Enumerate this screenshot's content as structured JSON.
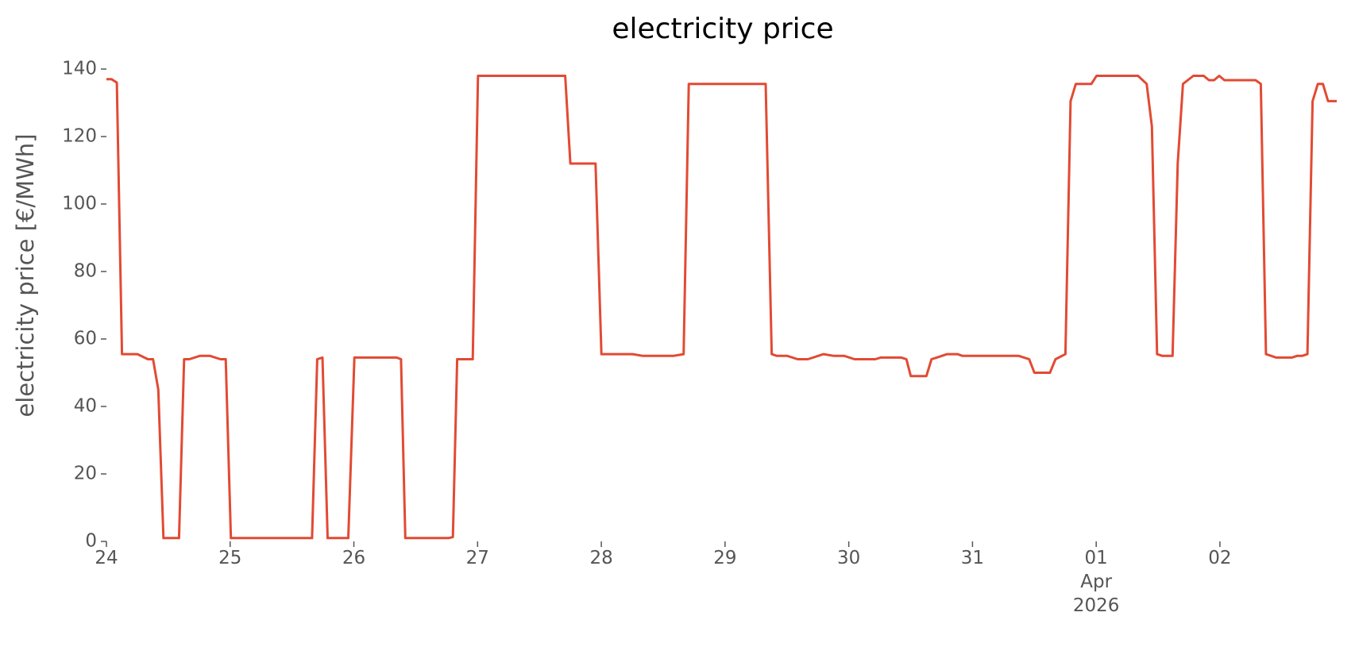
{
  "chart_data": {
    "type": "line",
    "title": "electricity price",
    "ylabel": "electricity price [€/MWh]",
    "x": [
      0,
      0.042,
      0.084,
      0.126,
      0.251,
      0.335,
      0.377,
      0.419,
      0.461,
      0.587,
      0.628,
      0.67,
      0.754,
      0.838,
      0.922,
      0.964,
      1.006,
      1.229,
      1.662,
      1.704,
      1.746,
      1.788,
      1.955,
      2.004,
      2.346,
      2.381,
      2.416,
      2.765,
      2.8,
      2.835,
      2.961,
      3.003,
      3.708,
      3.75,
      3.953,
      4.001,
      4.253,
      4.336,
      4.581,
      4.665,
      4.707,
      5.328,
      5.377,
      5.419,
      5.503,
      5.587,
      5.67,
      5.796,
      5.88,
      5.964,
      6.047,
      6.215,
      6.257,
      6.425,
      6.466,
      6.501,
      6.627,
      6.669,
      6.711,
      6.795,
      6.878,
      6.92,
      7.374,
      7.458,
      7.5,
      7.626,
      7.671,
      7.751,
      7.793,
      7.835,
      7.961,
      8.003,
      8.338,
      8.408,
      8.45,
      8.492,
      8.534,
      8.617,
      8.659,
      8.701,
      8.785,
      8.869,
      8.911,
      8.953,
      8.994,
      9.036,
      9.288,
      9.33,
      9.372,
      9.455,
      9.581,
      9.623,
      9.665,
      9.707,
      9.749,
      9.791,
      9.832,
      9.874,
      9.944
    ],
    "series": [
      {
        "color": "#E24A33",
        "values": [
          137,
          137,
          136,
          55.5,
          55.5,
          54,
          54,
          45,
          1,
          1,
          54,
          54,
          55,
          55,
          54,
          54,
          1,
          1,
          1,
          54,
          54.5,
          1,
          1,
          54.5,
          54.5,
          54,
          1,
          1,
          1.3,
          54,
          54,
          138,
          138,
          112,
          112,
          55.5,
          55.5,
          55,
          55,
          55.5,
          135.6,
          135.6,
          55.5,
          55,
          55,
          54,
          54,
          55.5,
          55,
          55,
          54,
          54,
          54.5,
          54.5,
          54,
          49,
          49,
          54,
          54.5,
          55.5,
          55.5,
          55,
          55,
          54,
          50,
          50,
          54,
          55.5,
          130.5,
          135.6,
          135.6,
          138,
          138,
          135.6,
          123,
          55.5,
          55,
          55,
          112,
          135.6,
          138,
          138,
          136.7,
          136.7,
          138,
          136.7,
          136.7,
          135.6,
          55.5,
          54.5,
          54.5,
          55,
          55,
          55.5,
          130.5,
          135.6,
          135.6,
          130.5,
          130.5
        ]
      }
    ],
    "xlim": [
      0,
      9.944
    ],
    "xticks": [
      {
        "value": 0,
        "label": "24"
      },
      {
        "value": 1,
        "label": "25"
      },
      {
        "value": 2,
        "label": "26"
      },
      {
        "value": 3,
        "label": "27"
      },
      {
        "value": 4,
        "label": "28"
      },
      {
        "value": 5,
        "label": "29"
      },
      {
        "value": 6,
        "label": "30"
      },
      {
        "value": 7,
        "label": "31"
      },
      {
        "value": 8,
        "label": "01\nApr\n2026"
      },
      {
        "value": 9,
        "label": "02"
      }
    ],
    "ylim": [
      0,
      140
    ],
    "yticks": [
      0,
      20,
      40,
      60,
      80,
      100,
      120,
      140
    ],
    "grid": false
  }
}
